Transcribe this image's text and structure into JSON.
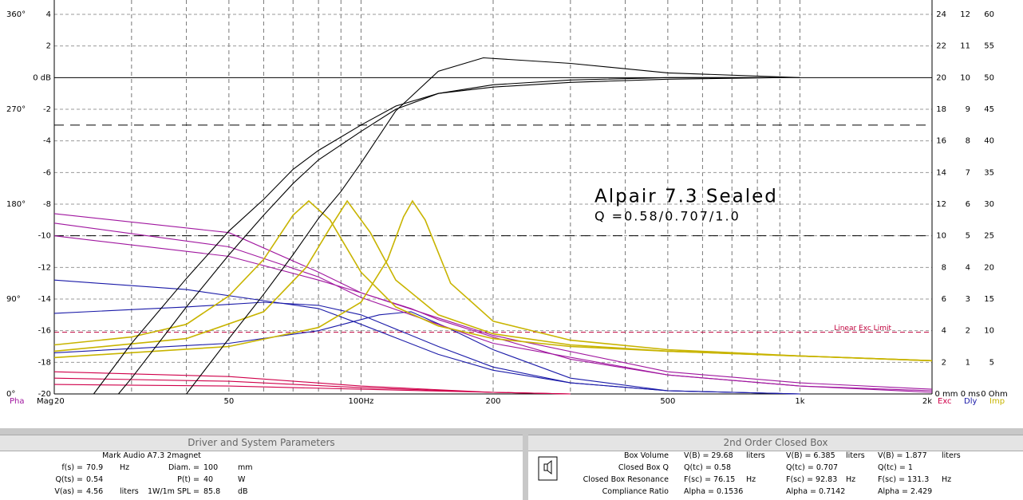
{
  "chart_data": {
    "type": "line",
    "title": "Alpair 7.3 Sealed",
    "subtitle": "Q =0.58/0.707/1.0",
    "xscale": "log",
    "xlim": [
      20,
      2000
    ],
    "xticks": [
      20,
      50,
      {
        "value": 100,
        "label": "100Hz"
      },
      200,
      500,
      {
        "value": 1000,
        "label": "1k"
      },
      {
        "value": 2000,
        "label": "2k"
      }
    ],
    "xgrid": [
      30,
      40,
      60,
      70,
      80,
      90,
      300,
      400,
      600,
      700,
      800,
      900
    ],
    "ylim": [
      -20,
      4
    ],
    "yticks": [
      4,
      2,
      {
        "value": 0,
        "label": "0 dB"
      },
      -2,
      -4,
      -6,
      -8,
      -10,
      -12,
      -14,
      -16,
      -18,
      -20
    ],
    "phase_lim": [
      0,
      360
    ],
    "phase_ticks": [
      {
        "value": 360,
        "label": "360°"
      },
      {
        "value": 270,
        "label": "270°"
      },
      {
        "value": 180,
        "label": "180°"
      },
      {
        "value": 90,
        "label": "90°"
      },
      {
        "value": 0,
        "label": "0°"
      }
    ],
    "right_axes": [
      {
        "lim": [
          0,
          24
        ],
        "ticks": [
          24,
          22,
          20,
          18,
          16,
          14,
          12,
          10,
          8,
          6,
          4,
          2,
          {
            "value": 0,
            "label": "0 mm"
          }
        ]
      },
      {
        "lim": [
          0,
          12
        ],
        "ticks": [
          12,
          11,
          10,
          9,
          8,
          7,
          6,
          5,
          4,
          3,
          2,
          1,
          {
            "value": 0,
            "label": "0 ms"
          }
        ]
      },
      {
        "lim": [
          0,
          60
        ],
        "ticks": [
          60,
          55,
          50,
          45,
          40,
          35,
          30,
          25,
          20,
          15,
          10,
          5,
          {
            "value": 0,
            "label": "0 Ohm"
          }
        ]
      }
    ],
    "axis_labels": {
      "phase": "Pha",
      "mag": "Mag",
      "exc": "Exc",
      "dly": "Dly",
      "imp": "Imp"
    },
    "grid": true,
    "ref_lines": [
      {
        "value": -3,
        "color": "#000000"
      },
      {
        "value": -10,
        "color": "#000000"
      },
      {
        "value": -16.1,
        "color": "#c0003c",
        "label": "Linear Exc Limit"
      }
    ],
    "series": [
      {
        "color": "#d0004a",
        "x": [
          20,
          50,
          100,
          200,
          300
        ],
        "values": [
          -18.6,
          -18.9,
          -19.5,
          -19.9,
          -20
        ]
      },
      {
        "color": "#d0004a",
        "x": [
          20,
          50,
          100,
          200,
          300
        ],
        "values": [
          -19.0,
          -19.2,
          -19.6,
          -19.9,
          -20
        ]
      },
      {
        "color": "#d0004a",
        "x": [
          20,
          50,
          100,
          200,
          300
        ],
        "values": [
          -19.4,
          -19.5,
          -19.7,
          -19.9,
          -20
        ]
      },
      {
        "color": "#1a1aa8",
        "x": [
          20,
          40,
          60,
          80,
          100,
          150,
          200,
          300,
          500,
          1000
        ],
        "values": [
          -12.8,
          -13.4,
          -14.1,
          -14.6,
          -15.6,
          -17.5,
          -18.5,
          -19.3,
          -19.8,
          -20
        ]
      },
      {
        "color": "#1a1aa8",
        "x": [
          20,
          40,
          60,
          80,
          100,
          150,
          200,
          300,
          500,
          1000
        ],
        "values": [
          -14.9,
          -14.5,
          -14.2,
          -14.4,
          -15.0,
          -17.0,
          -18.3,
          -19.3,
          -19.8,
          -20
        ]
      },
      {
        "color": "#1a1aa8",
        "x": [
          20,
          50,
          80,
          110,
          130,
          160,
          200,
          300,
          500,
          1000
        ],
        "values": [
          -17.4,
          -16.8,
          -16.0,
          -15.0,
          -14.8,
          -15.9,
          -17.2,
          -19.0,
          -19.8,
          -20
        ]
      },
      {
        "color": "#a0169f",
        "x": [
          20,
          50,
          80,
          100,
          150,
          200,
          500,
          1000,
          2000
        ],
        "values": [
          -8.6,
          -9.8,
          -12.3,
          -13.6,
          -15.2,
          -16.3,
          -18.6,
          -19.3,
          -19.7
        ]
      },
      {
        "color": "#a0169f",
        "x": [
          20,
          50,
          80,
          100,
          150,
          200,
          500,
          1000,
          2000
        ],
        "values": [
          -9.2,
          -10.7,
          -12.6,
          -13.9,
          -15.6,
          -16.8,
          -18.8,
          -19.5,
          -19.8
        ]
      },
      {
        "color": "#a0169f",
        "x": [
          20,
          50,
          80,
          100,
          130,
          150,
          200,
          300,
          500,
          1000,
          2000
        ],
        "values": [
          -10.0,
          -11.3,
          -12.8,
          -13.6,
          -14.6,
          -15.3,
          -16.4,
          -17.8,
          -18.8,
          -19.5,
          -19.9
        ]
      },
      {
        "color": "#c8b400",
        "x": [
          20,
          30,
          40,
          50,
          60,
          70,
          76,
          85,
          100,
          120,
          150,
          200,
          300,
          500,
          1000,
          2000
        ],
        "values": [
          -16.9,
          -16.4,
          -15.6,
          -13.8,
          -11.5,
          -8.7,
          -7.8,
          -9.0,
          -12.3,
          -14.5,
          -15.7,
          -16.5,
          -17.0,
          -17.3,
          -17.6,
          -17.9
        ]
      },
      {
        "color": "#c8b400",
        "x": [
          20,
          40,
          60,
          75,
          85,
          93,
          105,
          120,
          150,
          200,
          300,
          500,
          1000,
          2000
        ],
        "values": [
          -17.3,
          -16.5,
          -14.8,
          -12.0,
          -9.5,
          -7.8,
          -9.8,
          -12.8,
          -15.0,
          -16.2,
          -16.9,
          -17.3,
          -17.6,
          -17.9
        ]
      },
      {
        "color": "#c8b400",
        "x": [
          20,
          50,
          80,
          100,
          115,
          125,
          131,
          140,
          160,
          200,
          300,
          500,
          1000,
          2000
        ],
        "values": [
          -17.7,
          -17.0,
          -15.8,
          -14.2,
          -11.5,
          -8.8,
          -7.8,
          -9.0,
          -13.0,
          -15.4,
          -16.6,
          -17.2,
          -17.6,
          -17.9
        ]
      },
      {
        "color": "#000000",
        "x": [
          24.6,
          30,
          40,
          50,
          60,
          70,
          80,
          100,
          120,
          150,
          200,
          300,
          500,
          900
        ],
        "values": [
          -20,
          -16.8,
          -12.7,
          -9.7,
          -7.7,
          -5.8,
          -4.6,
          -3.0,
          -1.8,
          -1.0,
          -0.6,
          -0.3,
          -0.1,
          0
        ]
      },
      {
        "color": "#000000",
        "x": [
          28,
          30,
          40,
          50,
          60,
          70,
          80,
          100,
          120,
          150,
          200,
          300,
          500,
          900
        ],
        "values": [
          -20,
          -19,
          -14.5,
          -11.2,
          -8.7,
          -6.7,
          -5.2,
          -3.4,
          -2.0,
          -1.0,
          -0.45,
          -0.15,
          0,
          0
        ]
      },
      {
        "color": "#000000",
        "x": [
          40,
          50,
          60,
          70,
          80,
          90,
          100,
          120,
          150,
          190,
          300,
          500,
          1000
        ],
        "values": [
          -20,
          -16.5,
          -13.7,
          -11.2,
          -8.9,
          -7.2,
          -5.4,
          -2.1,
          0.4,
          1.25,
          0.9,
          0.3,
          0
        ]
      }
    ]
  },
  "driver_panel": {
    "title": "Driver and System Parameters",
    "driver": "Mark Audio  A7.3 2magnet",
    "rows": [
      [
        [
          "f(s) =",
          "70.9",
          "Hz"
        ],
        [
          "Diam. =",
          "100",
          "mm"
        ]
      ],
      [
        [
          "Q(ts) =",
          "0.54"
        ],
        [
          "P(t) =",
          "40",
          "W"
        ]
      ],
      [
        [
          "V(as) =",
          "4.56",
          "liters"
        ],
        [
          "1W/1m SPL =",
          "85.8",
          "dB"
        ]
      ]
    ]
  },
  "box_panel": {
    "title": "2nd Order Closed Box",
    "rows": [
      {
        "label": "Box Volume",
        "cells": [
          [
            "V(B) = 29.68",
            "liters"
          ],
          [
            "V(B) = 6.385",
            "liters"
          ],
          [
            "V(B) = 1.877",
            "liters"
          ]
        ]
      },
      {
        "label": "Closed Box Q",
        "cells": [
          [
            "Q(tc) = 0.58"
          ],
          [
            "Q(tc) = 0.707"
          ],
          [
            "Q(tc) = 1"
          ]
        ]
      },
      {
        "label": "Closed Box Resonance",
        "cells": [
          [
            "F(sc) = 76.15",
            "Hz"
          ],
          [
            "F(sc) = 92.83",
            "Hz"
          ],
          [
            "F(sc) = 131.3",
            "Hz"
          ]
        ]
      },
      {
        "label": "Compliance Ratio",
        "cells": [
          [
            "Alpha = 0.1536"
          ],
          [
            "Alpha = 0.7142"
          ],
          [
            "Alpha = 2.429"
          ]
        ]
      }
    ]
  }
}
